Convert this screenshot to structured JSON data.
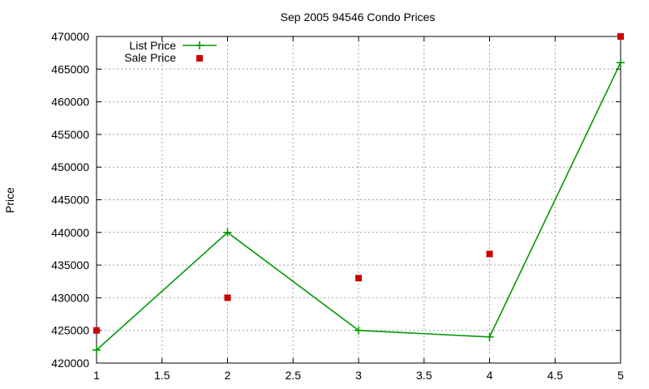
{
  "chart_data": {
    "type": "line",
    "title": "Sep 2005 94546 Condo Prices",
    "xlabel": "",
    "ylabel": "Price",
    "xlim": [
      1,
      5
    ],
    "ylim": [
      420000,
      470000
    ],
    "xticks": [
      "1",
      "1.5",
      "2",
      "2.5",
      "3",
      "3.5",
      "4",
      "4.5",
      "5"
    ],
    "yticks": [
      "420000",
      "425000",
      "430000",
      "435000",
      "440000",
      "445000",
      "450000",
      "455000",
      "460000",
      "465000",
      "470000"
    ],
    "grid": true,
    "legend_position": "top-left",
    "series": [
      {
        "name": "List Price",
        "style": "line-with-plus-markers",
        "color": "#009900",
        "x": [
          1,
          2,
          3,
          4,
          5
        ],
        "y": [
          422000,
          440000,
          425000,
          424000,
          466000
        ]
      },
      {
        "name": "Sale Price",
        "style": "square-markers",
        "color": "#cc0000",
        "x": [
          1,
          2,
          3,
          4,
          5
        ],
        "y": [
          425000,
          430000,
          433000,
          436700,
          470000
        ]
      }
    ]
  }
}
